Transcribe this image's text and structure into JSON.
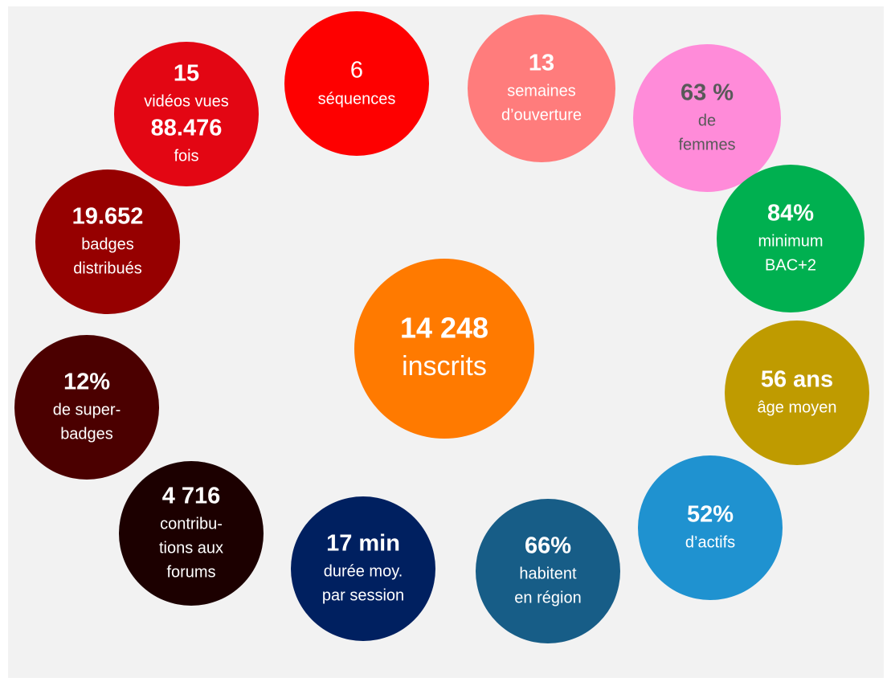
{
  "circles": [
    {
      "lines": [
        "15",
        "vidéos vues",
        "88.476",
        "fois"
      ]
    },
    {
      "lines": [
        "6",
        "séquences"
      ]
    },
    {
      "lines": [
        "13",
        "semaines",
        "d’ouverture"
      ]
    },
    {
      "lines": [
        "63 %",
        "de",
        "femmes"
      ]
    },
    {
      "lines": [
        "84%",
        "minimum",
        "BAC+2"
      ]
    },
    {
      "lines": [
        "56 ans",
        "âge moyen"
      ]
    },
    {
      "lines": [
        "52%",
        "d’actifs"
      ]
    },
    {
      "lines": [
        "66%",
        "habitent",
        "en région"
      ]
    },
    {
      "lines": [
        "17 min",
        "durée moy.",
        "par session"
      ]
    },
    {
      "lines": [
        "4 716",
        "contribu-",
        "tions aux",
        "forums"
      ]
    },
    {
      "lines": [
        "12%",
        "de super-",
        "badges"
      ]
    },
    {
      "lines": [
        "19.652",
        "badges",
        "distribués"
      ]
    },
    {
      "lines": [
        "14 248",
        "inscrits"
      ]
    }
  ]
}
